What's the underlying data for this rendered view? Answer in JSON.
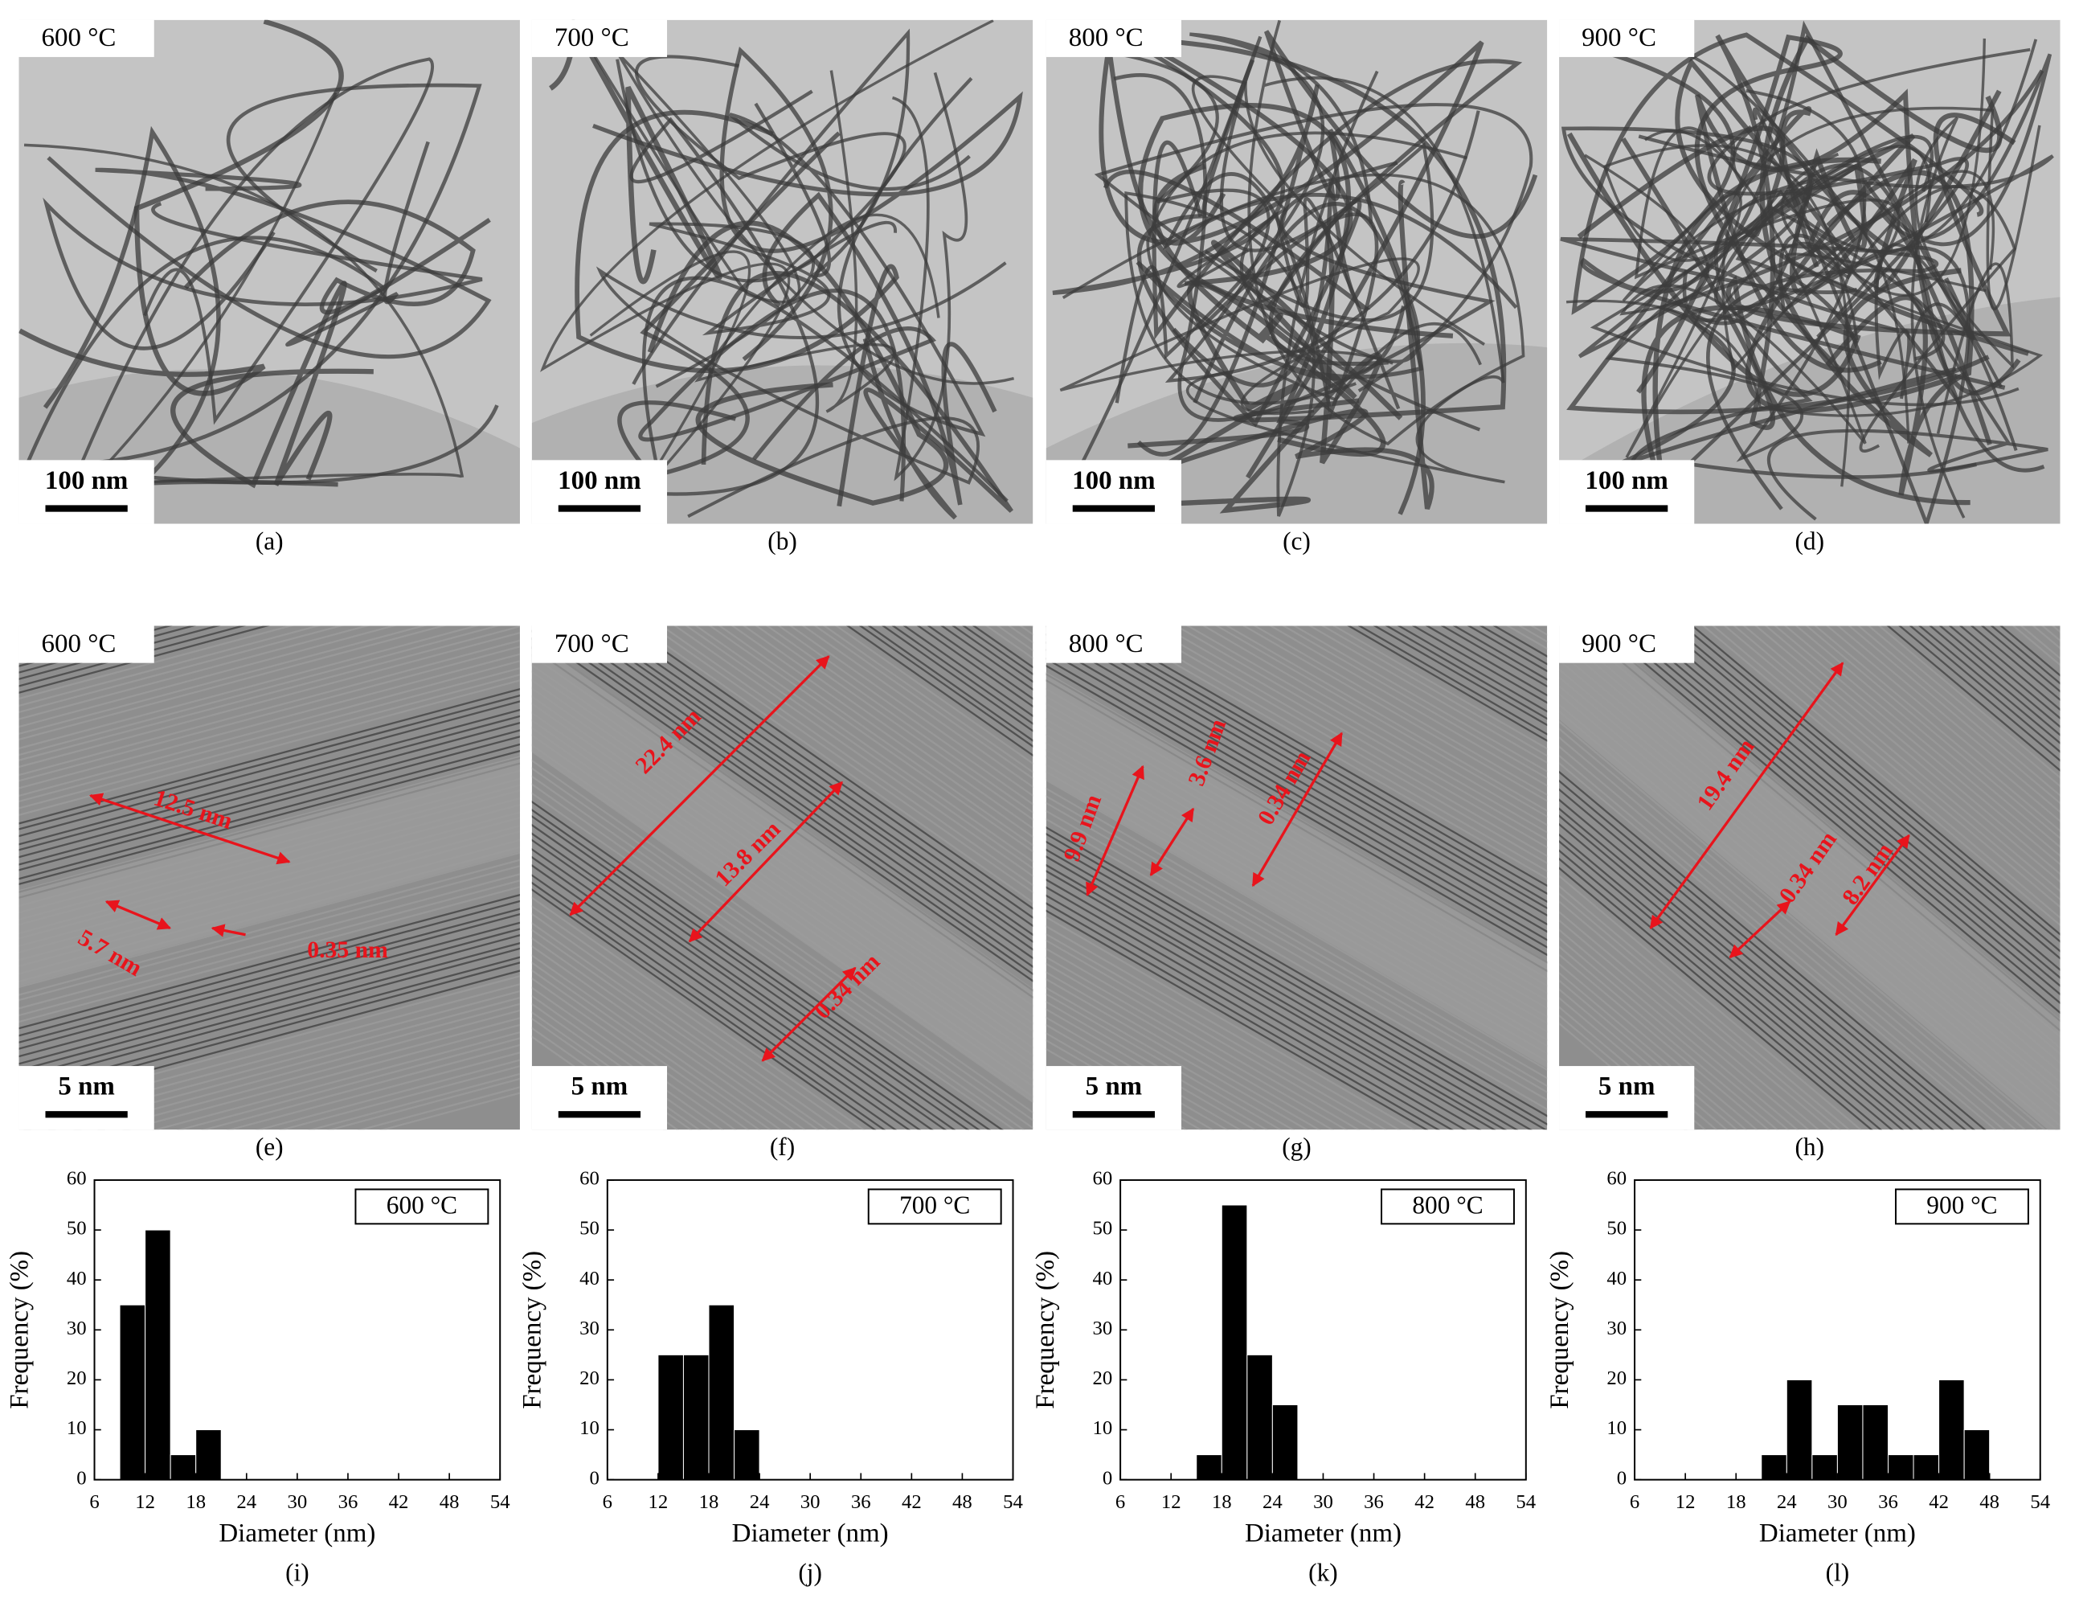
{
  "chart_data": [
    {
      "type": "histogram",
      "title": "600 °C",
      "panel_label": "(i)",
      "xlabel": "Diameter (nm)",
      "ylabel": "Frequency (%)",
      "bins": [
        9,
        12,
        15,
        18,
        21
      ],
      "values": [
        35,
        50,
        5,
        10
      ],
      "color": "#000000",
      "xlim": [
        6,
        54
      ],
      "ylim": [
        0,
        60
      ],
      "xticks": [
        6,
        12,
        18,
        24,
        30,
        36,
        42,
        48,
        54
      ],
      "yticks": [
        0,
        10,
        20,
        30,
        40,
        50,
        60
      ]
    },
    {
      "type": "histogram",
      "title": "700 °C",
      "panel_label": "(j)",
      "xlabel": "Diameter (nm)",
      "ylabel": "Frequency (%)",
      "bins": [
        12,
        15,
        18,
        21,
        24
      ],
      "values": [
        25,
        25,
        35,
        10
      ],
      "color": "#000000",
      "xlim": [
        6,
        54
      ],
      "ylim": [
        0,
        60
      ],
      "xticks": [
        6,
        12,
        18,
        24,
        30,
        36,
        42,
        48,
        54
      ],
      "yticks": [
        0,
        10,
        20,
        30,
        40,
        50,
        60
      ]
    },
    {
      "type": "histogram",
      "title": "800 °C",
      "panel_label": "(k)",
      "xlabel": "Diameter (nm)",
      "ylabel": "Frequency (%)",
      "bins": [
        15,
        18,
        21,
        24,
        27
      ],
      "values": [
        5,
        55,
        25,
        15
      ],
      "color": "#000000",
      "xlim": [
        6,
        54
      ],
      "ylim": [
        0,
        60
      ],
      "xticks": [
        6,
        12,
        18,
        24,
        30,
        36,
        42,
        48,
        54
      ],
      "yticks": [
        0,
        10,
        20,
        30,
        40,
        50,
        60
      ]
    },
    {
      "type": "histogram",
      "title": "900 °C",
      "panel_label": "(l)",
      "xlabel": "Diameter (nm)",
      "ylabel": "Frequency (%)",
      "bins": [
        21,
        24,
        27,
        30,
        33,
        36,
        39,
        42,
        45,
        48
      ],
      "values": [
        5,
        20,
        5,
        15,
        15,
        5,
        5,
        20,
        10
      ],
      "color": "#000000",
      "xlim": [
        6,
        54
      ],
      "ylim": [
        0,
        60
      ],
      "xticks": [
        6,
        12,
        18,
        24,
        30,
        36,
        42,
        48,
        54
      ],
      "yticks": [
        0,
        10,
        20,
        30,
        40,
        50,
        60
      ]
    }
  ],
  "images": [
    {
      "panel_label": "(a)",
      "temperature": "600 °C",
      "scale_bar": "100 nm"
    },
    {
      "panel_label": "(b)",
      "temperature": "700 °C",
      "scale_bar": "100 nm"
    },
    {
      "panel_label": "(c)",
      "temperature": "800 °C",
      "scale_bar": "100 nm"
    },
    {
      "panel_label": "(d)",
      "temperature": "900 °C",
      "scale_bar": "100 nm"
    },
    {
      "panel_label": "(e)",
      "temperature": "600 °C",
      "scale_bar": "5 nm",
      "measurements": [
        "12.5 nm",
        "5.7 nm",
        "0.35 nm"
      ]
    },
    {
      "panel_label": "(f)",
      "temperature": "700 °C",
      "scale_bar": "5 nm",
      "measurements": [
        "22.4 nm",
        "13.8 nm",
        "0.34 nm"
      ]
    },
    {
      "panel_label": "(g)",
      "temperature": "800 °C",
      "scale_bar": "5 nm",
      "measurements": [
        "9.9 nm",
        "3.6 nm",
        "0.34 nm"
      ]
    },
    {
      "panel_label": "(h)",
      "temperature": "900 °C",
      "scale_bar": "5 nm",
      "measurements": [
        "19.4 nm",
        "0.34 nm",
        "8.2 nm"
      ]
    }
  ]
}
